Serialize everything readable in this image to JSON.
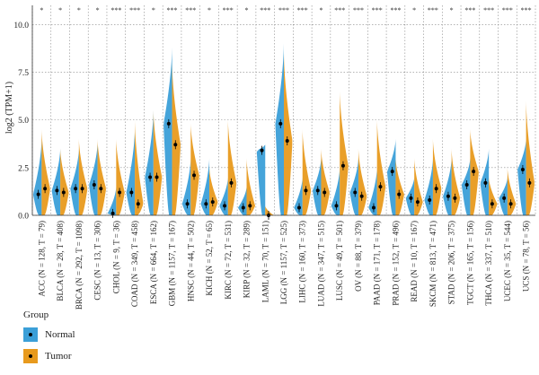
{
  "chart_data": {
    "type": "violin",
    "ylabel": "log2 (TPM+1)",
    "ylim": [
      0,
      11
    ],
    "yticks": [
      "0.0",
      "2.5",
      "5.0",
      "7.5",
      "10.0"
    ],
    "grid": true,
    "legend": {
      "title": "Group",
      "position": "bottom-left",
      "items": [
        {
          "name": "Normal",
          "color": "#3b9fd8"
        },
        {
          "name": "Tumor",
          "color": "#e89a1d"
        }
      ]
    },
    "categories": [
      "ACC (N = 128, T = 79)",
      "BLCA (N = 28, T = 408)",
      "BRCA (N = 292, T = 1098)",
      "CESC (N = 13, T = 306)",
      "CHOL (N = 9, T = 36)",
      "COAD (N = 349, T = 458)",
      "ESCA (N = 664, T = 162)",
      "GBM (N = 1157, T = 167)",
      "HNSC (N = 44, T = 502)",
      "KICH (N = 52, T = 65)",
      "KIRC (N = 72, T = 531)",
      "KIRP (N = 32, T = 289)",
      "LAML (N = 70, T = 151)",
      "LGG (N = 1157, T = 525)",
      "LIHC (N = 160, T = 373)",
      "LUAD (N = 347, T = 515)",
      "LUSC (N = 49, T = 501)",
      "OV (N = 88, T = 379)",
      "PAAD (N = 171, T = 178)",
      "PRAD (N = 152, T = 496)",
      "READ (N = 10, T = 167)",
      "SKCM (N = 813, T = 471)",
      "STAD (N = 206, T = 375)",
      "TGCT (N = 165, T = 156)",
      "THCA (N = 337, T = 510)",
      "UCEC (N = 35, T = 544)",
      "UCS (N = 78, T = 56)"
    ],
    "significance": [
      "*",
      "*",
      "*",
      "*",
      "***",
      "***",
      "*",
      "***",
      "***",
      "*",
      "***",
      "*",
      "***",
      "***",
      "***",
      "*",
      "***",
      "***",
      "***",
      "***",
      "*",
      "***",
      "*",
      "***",
      "***",
      "***",
      "***"
    ],
    "series": [
      {
        "name": "Normal",
        "medians": [
          1.1,
          1.3,
          1.4,
          1.6,
          0.1,
          1.2,
          2.0,
          4.8,
          0.6,
          0.6,
          0.5,
          0.4,
          3.4,
          4.8,
          0.4,
          1.3,
          0.5,
          1.2,
          0.4,
          2.3,
          0.9,
          0.8,
          1.0,
          1.6,
          1.7,
          0.9,
          2.4
        ],
        "max": [
          4.0,
          3.5,
          3.5,
          3.8,
          1.5,
          4.5,
          5.5,
          8.8,
          3.0,
          3.0,
          2.0,
          1.5,
          3.7,
          9.0,
          2.0,
          3.0,
          2.5,
          3.0,
          2.5,
          4.0,
          2.0,
          3.0,
          3.0,
          3.0,
          3.5,
          2.0,
          4.0
        ]
      },
      {
        "name": "Tumor",
        "medians": [
          1.4,
          1.2,
          1.4,
          1.4,
          1.2,
          0.6,
          2.0,
          3.7,
          2.1,
          0.7,
          1.7,
          0.5,
          0.0,
          3.9,
          1.3,
          1.2,
          2.6,
          1.0,
          1.5,
          1.1,
          0.7,
          1.4,
          0.9,
          2.3,
          0.6,
          0.6,
          1.7
        ],
        "max": [
          4.5,
          3.5,
          4.0,
          4.0,
          4.0,
          5.0,
          5.5,
          8.0,
          4.8,
          2.5,
          5.0,
          3.0,
          0.5,
          8.5,
          4.5,
          3.5,
          6.5,
          3.5,
          5.0,
          3.0,
          3.0,
          4.0,
          3.5,
          4.5,
          2.0,
          2.5,
          6.0
        ]
      }
    ]
  }
}
